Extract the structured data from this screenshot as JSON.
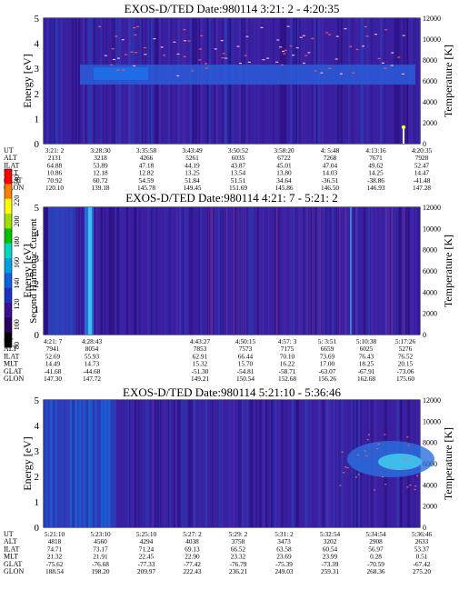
{
  "colorbar": {
    "label": "Second Harmonic Current",
    "ticks": [
      "240",
      "220",
      "200",
      "180",
      "160",
      "140",
      "120",
      "100",
      "80"
    ],
    "colors": [
      "#000000",
      "#2a0060",
      "#3a1090",
      "#2030c0",
      "#1060e0",
      "#00a0e0",
      "#00d8c0",
      "#00c000",
      "#a0e000",
      "#ffff00",
      "#ff8000",
      "#ff0000"
    ]
  },
  "chart_data": [
    {
      "type": "heatmap",
      "title": "EXOS-D/TED   Date:980114   3:21: 2 - 4:20:35",
      "ylabel": "Energy [eV]",
      "ylabel2": "Temperature [K]",
      "yticks": [
        "0",
        "1",
        "2",
        "3",
        "4",
        "5"
      ],
      "ylim": [
        0,
        5
      ],
      "y2ticks": [
        "0",
        "2000",
        "4000",
        "6000",
        "8000",
        "10000",
        "12000"
      ],
      "y2lim": [
        0,
        12000
      ],
      "gaps": [
        [
          3.19,
          3.21
        ],
        [
          3.22,
          3.24
        ]
      ],
      "rows": [
        {
          "label": "UT",
          "values": [
            "3:21: 2",
            "3:28:30",
            "3:35:58",
            "3:43:49",
            "3:50:52",
            "3:58:20",
            "4: 5:48",
            "4:13:16",
            "4:20:35"
          ]
        },
        {
          "label": "ALT",
          "values": [
            "2131",
            "3218",
            "4266",
            "5261",
            "6035",
            "6722",
            "7268",
            "7671",
            "7928"
          ]
        },
        {
          "label": "ILAT",
          "values": [
            "64.88",
            "53.89",
            "47.18",
            "44.19",
            "43.87",
            "45.01",
            "47.04",
            "49.62",
            "52.47"
          ]
        },
        {
          "label": "MLT",
          "values": [
            "10.86",
            "12.18",
            "12.82",
            "13.25",
            "13.54",
            "13.80",
            "14.03",
            "14.25",
            "14.47"
          ]
        },
        {
          "label": "GLAT",
          "values": [
            "70.92",
            "60.72",
            "54.59",
            "51.84",
            "51.51",
            "34.64",
            "-36.51",
            "-38.86",
            "-41.48"
          ]
        },
        {
          "label": "GLON",
          "values": [
            "120.10",
            "139.18",
            "145.78",
            "149.45",
            "151.69",
            "145.86",
            "146.50",
            "146.93",
            "147.28"
          ]
        }
      ]
    },
    {
      "type": "heatmap",
      "title": "EXOS-D/TED   Date:980114   4:21: 7 - 5:21: 2",
      "ylabel": "Energy [eV]",
      "ylabel2": "Temperature [K]",
      "yticks": [
        "0",
        "1",
        "2",
        "3",
        "4",
        "5"
      ],
      "ylim": [
        0,
        5
      ],
      "y2ticks": [
        "0",
        "2000",
        "4000",
        "6000",
        "8000",
        "10000",
        "12000"
      ],
      "y2lim": [
        0,
        12000
      ],
      "gaps": [
        [
          0.18,
          0.5
        ]
      ],
      "rows": [
        {
          "label": "UT",
          "values": [
            "4:21: 7",
            "4:28:43",
            "4:43:27",
            "4:50:15",
            "4:57: 3",
            "5: 3:51",
            "5:10:38",
            "5:17:26"
          ]
        },
        {
          "label": "ALT",
          "values": [
            "7941",
            "8054",
            "7853",
            "7573",
            "7175",
            "6659",
            "6025",
            "5276"
          ]
        },
        {
          "label": "ILAT",
          "values": [
            "52.69",
            "55.93",
            "62.91",
            "66.44",
            "70.10",
            "73.69",
            "76.43",
            "76.52"
          ]
        },
        {
          "label": "MLT",
          "values": [
            "14.49",
            "14.73",
            "15.32",
            "15.70",
            "16.22",
            "17.00",
            "18.25",
            "20.15"
          ]
        },
        {
          "label": "GLAT",
          "values": [
            "-41.68",
            "-44.68",
            "-51.30",
            "-54.81",
            "-58.71",
            "-63.07",
            "-67.91",
            "-73.06"
          ]
        },
        {
          "label": "GLON",
          "values": [
            "147.30",
            "147.72",
            "149.21",
            "150.54",
            "152.68",
            "156.26",
            "162.68",
            "175.60"
          ]
        }
      ]
    },
    {
      "type": "heatmap",
      "title": "EXOS-D/TED   Date:980114   5:21:10 - 5:36:46",
      "ylabel": "Energy [eV]",
      "ylabel2": "Temperature [K]",
      "yticks": [
        "0",
        "1",
        "2",
        "3",
        "4",
        "5"
      ],
      "ylim": [
        0,
        5
      ],
      "y2ticks": [
        "0",
        "2000",
        "4000",
        "6000",
        "8000",
        "10000",
        "12000"
      ],
      "y2lim": [
        0,
        12000
      ],
      "gaps": [],
      "rows": [
        {
          "label": "UT",
          "values": [
            "5:21:10",
            "5:23:10",
            "5:25:10",
            "5:27: 2",
            "5:29: 2",
            "5:31: 2",
            "5:32:54",
            "5:34:54",
            "5:36:46"
          ]
        },
        {
          "label": "ALT",
          "values": [
            "4818",
            "4560",
            "4294",
            "4038",
            "3758",
            "3473",
            "3202",
            "2908",
            "2633"
          ]
        },
        {
          "label": "ILAT",
          "values": [
            "74.71",
            "73.17",
            "71.24",
            "69.13",
            "66.52",
            "63.58",
            "60.54",
            "56.97",
            "53.37"
          ]
        },
        {
          "label": "MLT",
          "values": [
            "21.32",
            "21.91",
            "22.45",
            "22.90",
            "23.32",
            "23.69",
            "23.99",
            "0.28",
            "0.51"
          ]
        },
        {
          "label": "GLAT",
          "values": [
            "-75.62",
            "-76.68",
            "-77.33",
            "-77.42",
            "-76.79",
            "-75.39",
            "-73.39",
            "-70.59",
            "-67.42"
          ]
        },
        {
          "label": "GLON",
          "values": [
            "188.54",
            "198.20",
            "209.97",
            "222.43",
            "236.21",
            "249.03",
            "259.31",
            "268.36",
            "275.20"
          ]
        }
      ]
    }
  ]
}
